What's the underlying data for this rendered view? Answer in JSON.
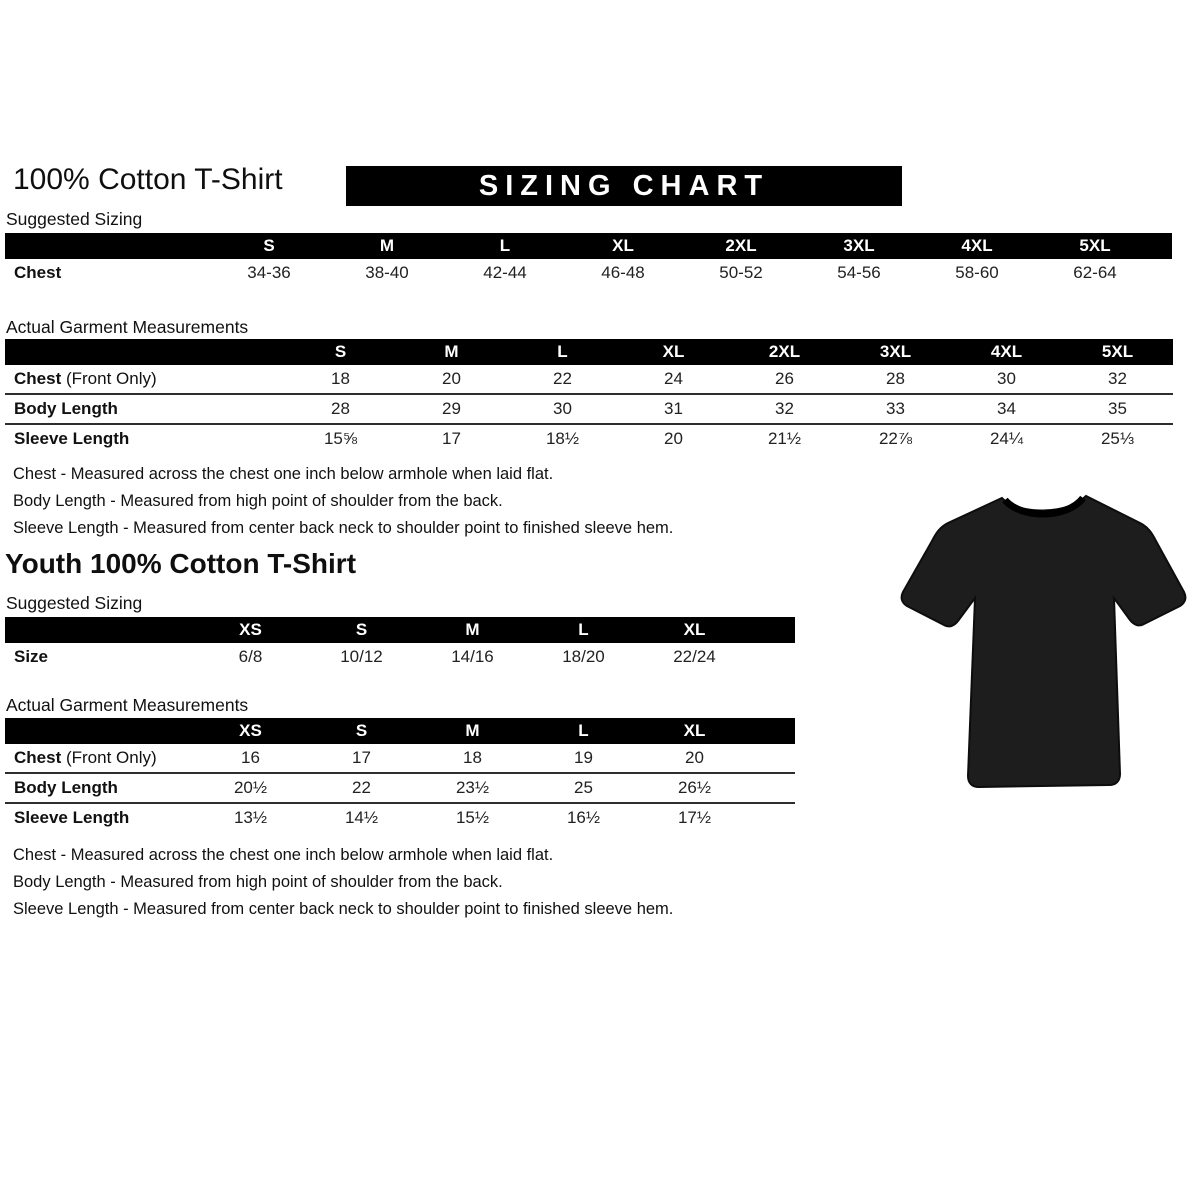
{
  "header": {
    "title": "100% Cotton T-Shirt",
    "banner": "SIZING CHART"
  },
  "adult": {
    "suggested_label": "Suggested Sizing",
    "actual_label": "Actual Garment Measurements",
    "suggested_table": {
      "columns": [
        "S",
        "M",
        "L",
        "XL",
        "2XL",
        "3XL",
        "4XL",
        "5XL"
      ],
      "rows": [
        {
          "label": "Chest",
          "values": [
            "34-36",
            "38-40",
            "42-44",
            "46-48",
            "50-52",
            "54-56",
            "58-60",
            "62-64"
          ]
        }
      ]
    },
    "actual_table": {
      "columns": [
        "S",
        "M",
        "L",
        "XL",
        "2XL",
        "3XL",
        "4XL",
        "5XL"
      ],
      "rows": [
        {
          "label": "Chest",
          "suffix": "(Front Only)",
          "values": [
            "18",
            "20",
            "22",
            "24",
            "26",
            "28",
            "30",
            "32"
          ]
        },
        {
          "label": "Body Length",
          "values": [
            "28",
            "29",
            "30",
            "31",
            "32",
            "33",
            "34",
            "35"
          ]
        },
        {
          "label": "Sleeve Length",
          "values": [
            "15⅝",
            "17",
            "18½",
            "20",
            "21½",
            "22⅞",
            "24¼",
            "25⅓"
          ]
        }
      ]
    },
    "notes": [
      "Chest - Measured across the chest one inch below armhole when laid flat.",
      "Body Length - Measured from high point of shoulder from the back.",
      "Sleeve Length - Measured from center back neck to shoulder point to finished sleeve hem."
    ]
  },
  "youth": {
    "title": "Youth 100% Cotton T-Shirt",
    "suggested_label": "Suggested Sizing",
    "actual_label": "Actual Garment Measurements",
    "suggested_table": {
      "columns": [
        "XS",
        "S",
        "M",
        "L",
        "XL"
      ],
      "rows": [
        {
          "label": "Size",
          "values": [
            "6/8",
            "10/12",
            "14/16",
            "18/20",
            "22/24"
          ]
        }
      ]
    },
    "actual_table": {
      "columns": [
        "XS",
        "S",
        "M",
        "L",
        "XL"
      ],
      "rows": [
        {
          "label": "Chest",
          "suffix": "(Front Only)",
          "values": [
            "16",
            "17",
            "18",
            "19",
            "20"
          ]
        },
        {
          "label": "Body Length",
          "values": [
            "20½",
            "22",
            "23½",
            "25",
            "26½"
          ]
        },
        {
          "label": "Sleeve Length",
          "values": [
            "13½",
            "14½",
            "15½",
            "16½",
            "17½"
          ]
        }
      ]
    },
    "notes": [
      "Chest - Measured across the chest one inch below armhole when laid flat.",
      "Body Length - Measured from high point of shoulder from the back.",
      "Sleeve Length - Measured from center back neck to shoulder point to finished sleeve hem."
    ]
  },
  "tshirt_image": {
    "description": "black short-sleeve crew neck t-shirt"
  },
  "colors": {
    "banner_bg": "#000000",
    "banner_text": "#ffffff",
    "table_header_bg": "#000000",
    "table_header_text": "#ffffff",
    "body_text": "#1a1a1a",
    "shirt_fill": "#1d1d1d"
  }
}
